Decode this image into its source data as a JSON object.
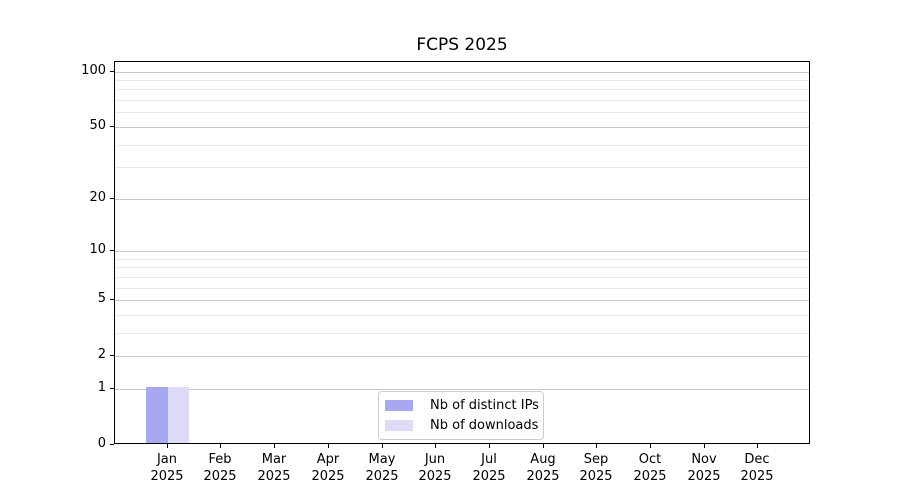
{
  "title": "FCPS 2025",
  "chart_data": {
    "type": "bar",
    "title": "FCPS 2025",
    "categories": [
      {
        "label": "Jan",
        "sub": "2025"
      },
      {
        "label": "Feb",
        "sub": "2025"
      },
      {
        "label": "Mar",
        "sub": "2025"
      },
      {
        "label": "Apr",
        "sub": "2025"
      },
      {
        "label": "May",
        "sub": "2025"
      },
      {
        "label": "Jun",
        "sub": "2025"
      },
      {
        "label": "Jul",
        "sub": "2025"
      },
      {
        "label": "Aug",
        "sub": "2025"
      },
      {
        "label": "Sep",
        "sub": "2025"
      },
      {
        "label": "Oct",
        "sub": "2025"
      },
      {
        "label": "Nov",
        "sub": "2025"
      },
      {
        "label": "Dec",
        "sub": "2025"
      }
    ],
    "series": [
      {
        "name": "Nb of distinct IPs",
        "color": "#a8a8f0",
        "values": [
          1,
          0,
          0,
          0,
          0,
          0,
          0,
          0,
          0,
          0,
          0,
          0
        ]
      },
      {
        "name": "Nb of downloads",
        "color": "#dcdcf8",
        "values": [
          1,
          0,
          0,
          0,
          0,
          0,
          0,
          0,
          0,
          0,
          0,
          0
        ]
      }
    ],
    "xlabel": "",
    "ylabel": "",
    "yscale": "log1p",
    "ylim": [
      0,
      112
    ],
    "y_major_ticks": [
      0,
      1,
      2,
      5,
      10,
      20,
      50,
      100
    ],
    "y_minor_ticks": [
      3,
      4,
      6,
      7,
      8,
      9,
      30,
      40,
      60,
      70,
      80,
      90
    ],
    "grid": "horizontal",
    "grid_major_color": "#c9c9c9",
    "grid_minor_color": "#ebebeb",
    "legend_position": "bottom-center-inside",
    "axis_color": "#000000",
    "text_color": "#000000",
    "background_color": "#ffffff"
  }
}
